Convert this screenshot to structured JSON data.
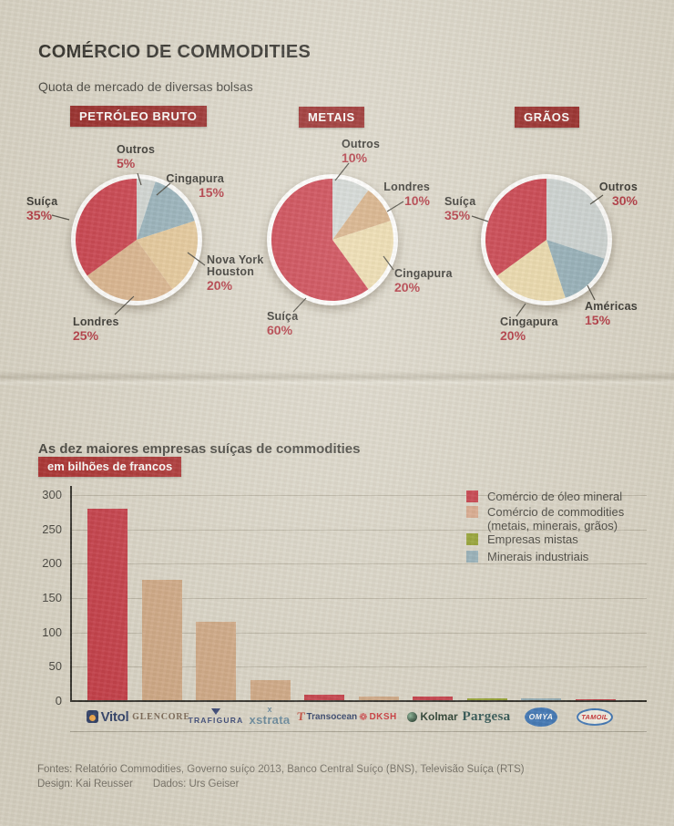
{
  "header": {
    "title": "COMÉRCIO DE COMMODITIES",
    "subtitle": "Quota de mercado de diversas bolsas"
  },
  "section2": {
    "title": "As dez maiores empresas suíças de commodities",
    "unit_badge": "em bilhões de francos"
  },
  "footer": {
    "sources": "Fontes: Relatório Commodities, Governo suíço 2013, Banco Central Suíço (BNS), Televisão Suíça (RTS)",
    "credits_design": "Design: Kai Reusser",
    "credits_data": "Dados: Urs Geiser"
  },
  "colors": {
    "background": "#d9d4c6",
    "tag_bg": "#8e1414",
    "badge_bg": "#a41c1e",
    "accent_red": "#c22b39",
    "pct_red": "#ab2330",
    "bar_tan": "#cda27c",
    "legend_tan": "#d7a284",
    "olive": "#8b9b20",
    "steel_blue": "#8ba9b5",
    "light_gray": "#cdd3d1",
    "cream": "#ebd8a6",
    "text_dark": "#201f1b",
    "text_gray": "#6b675e"
  },
  "chart_data": [
    {
      "type": "pie",
      "title": "PETRÓLEO BRUTO",
      "slices": [
        {
          "label": "Outros",
          "value": 5,
          "pct_text": "5%",
          "color": "#cdd3d1"
        },
        {
          "label": "Cingapura",
          "value": 15,
          "pct_text": "15%",
          "color": "#8ba9b5"
        },
        {
          "label": "Nova York Houston",
          "lines": [
            "Nova York",
            "Houston"
          ],
          "value": 20,
          "pct_text": "20%",
          "color": "#e3c390"
        },
        {
          "label": "Londres",
          "value": 25,
          "pct_text": "25%",
          "color": "#d7ad83"
        },
        {
          "label": "Suíça",
          "value": 35,
          "pct_text": "35%",
          "color": "#c52c3b"
        }
      ]
    },
    {
      "type": "pie",
      "title": "METAIS",
      "slices": [
        {
          "label": "Outros",
          "value": 10,
          "pct_text": "10%",
          "color": "#cdd3d1"
        },
        {
          "label": "Londres",
          "value": 10,
          "pct_text": "10%",
          "color": "#d2a678"
        },
        {
          "label": "Cingapura",
          "value": 20,
          "pct_text": "20%",
          "color": "#ebd8a6"
        },
        {
          "label": "Suíça",
          "value": 60,
          "pct_text": "60%",
          "color": "#c52c3b"
        }
      ]
    },
    {
      "type": "pie",
      "title": "GRÃOS",
      "slices": [
        {
          "label": "Outros",
          "value": 30,
          "pct_text": "30%",
          "color": "#c9d1d1"
        },
        {
          "label": "Américas",
          "value": 15,
          "pct_text": "15%",
          "color": "#8ba9b5"
        },
        {
          "label": "Cingapura",
          "value": 20,
          "pct_text": "20%",
          "color": "#ebd8a6"
        },
        {
          "label": "Suíça",
          "value": 35,
          "pct_text": "35%",
          "color": "#c52c3b"
        }
      ]
    },
    {
      "type": "bar",
      "title": "As dez maiores empresas suíças de commodities",
      "unit": "em bilhões de francos",
      "ylim": [
        0,
        300
      ],
      "yticks": [
        300,
        250,
        200,
        150,
        100,
        50,
        0
      ],
      "grid": true,
      "legend_position": "top-right",
      "companies": [
        {
          "name": "Vitol",
          "logo_text": "Vitol",
          "value": 280,
          "color": "#c22b39"
        },
        {
          "name": "Glencore",
          "logo_text": "GLENCORE",
          "value": 176,
          "color": "#cda27c"
        },
        {
          "name": "Trafigura",
          "logo_text": "TRAFIGURA",
          "value": 115,
          "color": "#cda27c"
        },
        {
          "name": "Xstrata",
          "logo_text": "xstrata",
          "value": 31,
          "color": "#cda27c"
        },
        {
          "name": "Transocean",
          "logo_text": "Transocean",
          "value": 9,
          "color": "#c22b39"
        },
        {
          "name": "DKSH",
          "logo_text": "DKSH",
          "value": 7,
          "color": "#cda27c"
        },
        {
          "name": "Kolmar",
          "logo_text": "Kolmar",
          "value": 6,
          "color": "#c22b39"
        },
        {
          "name": "Pargesa",
          "logo_text": "Pargesa",
          "value": 4,
          "color": "#8b9b20"
        },
        {
          "name": "Omya",
          "logo_text": "OMYA",
          "value": 4,
          "color": "#8ba9b5"
        },
        {
          "name": "Tamoil",
          "logo_text": "TAMOIL",
          "value": 3,
          "color": "#c22b39"
        }
      ],
      "legend": [
        {
          "label": "Comércio de óleo mineral",
          "color": "#c22b39"
        },
        {
          "label": "Comércio de commodities",
          "label2": "(metais, minerais, grãos)",
          "color": "#d7a284"
        },
        {
          "label": "Empresas mistas",
          "color": "#8b9b20"
        },
        {
          "label": "Minerais industriais",
          "color": "#8ba9b5"
        }
      ]
    }
  ]
}
